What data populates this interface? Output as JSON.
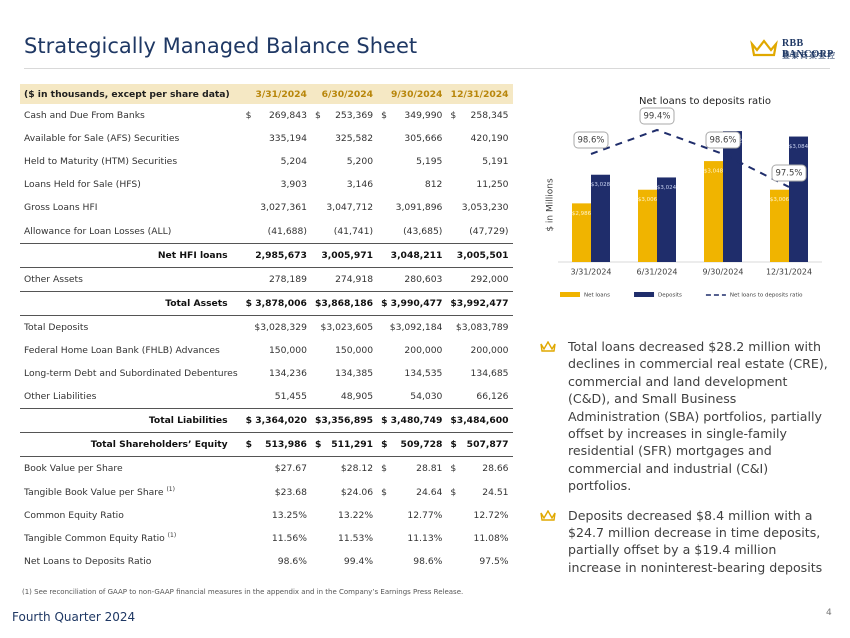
{
  "header": {
    "title": "Strategically Managed Balance Sheet",
    "logo": "RBB BANCORP",
    "logo_sub": "豐泰商業金控"
  },
  "table": {
    "columns": [
      "($ in thousands, except per share data)",
      "3/31/2024",
      "6/30/2024",
      "9/30/2024",
      "12/31/2024"
    ],
    "rows": [
      {
        "label": "Cash and Due From Banks",
        "cells": [
          [
            "$",
            "269,843"
          ],
          [
            "$",
            "253,369"
          ],
          [
            "$",
            "349,990"
          ],
          [
            "$",
            "258,345"
          ]
        ]
      },
      {
        "label": "Available for Sale (AFS) Securities",
        "cells": [
          "335,194",
          "325,582",
          "305,666",
          "420,190"
        ]
      },
      {
        "label": "Held to Maturity (HTM) Securities",
        "cells": [
          "5,204",
          "5,200",
          "5,195",
          "5,191"
        ]
      },
      {
        "label": "Loans Held for Sale (HFS)",
        "cells": [
          "3,903",
          "3,146",
          "812",
          "11,250"
        ]
      },
      {
        "label": "Gross Loans HFI",
        "cells": [
          "3,027,361",
          "3,047,712",
          "3,091,896",
          "3,053,230"
        ]
      },
      {
        "label": "Allowance for Loan Losses (ALL)",
        "cells": [
          "(41,688)",
          "(41,741)",
          "(43,685)",
          "(47,729)"
        ]
      },
      {
        "label": "Net HFI loans",
        "cells": [
          "2,985,673",
          "3,005,971",
          "3,048,211",
          "3,005,501"
        ]
      },
      {
        "label": "Other Assets",
        "cells": [
          "278,189",
          "274,918",
          "280,603",
          "292,000"
        ]
      },
      {
        "label": "Total Assets",
        "cells": [
          "$ 3,878,006",
          "$3,868,186",
          "$ 3,990,477",
          "$3,992,477"
        ]
      },
      {
        "label": "Total Deposits",
        "cells": [
          "$3,028,329",
          "$3,023,605",
          "$3,092,184",
          "$3,083,789"
        ]
      },
      {
        "label": "Federal Home Loan Bank (FHLB) Advances",
        "cells": [
          "150,000",
          "150,000",
          "200,000",
          "200,000"
        ]
      },
      {
        "label": "Long-term Debt and Subordinated Debentures",
        "cells": [
          "134,236",
          "134,385",
          "134,535",
          "134,685"
        ]
      },
      {
        "label": "Other Liabilities",
        "cells": [
          "51,455",
          "48,905",
          "54,030",
          "66,126"
        ]
      },
      {
        "label": "Total Liabilities",
        "cells": [
          "$ 3,364,020",
          "$3,356,895",
          "$ 3,480,749",
          "$3,484,600"
        ]
      },
      {
        "label": "Total Shareholders’ Equity",
        "cells": [
          [
            "$",
            "513,986"
          ],
          [
            "$",
            "511,291"
          ],
          [
            "$",
            "509,728"
          ],
          [
            "$",
            "507,877"
          ]
        ]
      },
      {
        "label": "Book Value per Share",
        "cells": [
          "$27.67",
          "$28.12",
          [
            "$",
            "28.81"
          ],
          [
            "$",
            "28.66"
          ]
        ]
      },
      {
        "label": "Tangible Book Value per Share",
        "note": "(1)",
        "cells": [
          "$23.68",
          "$24.06",
          [
            "$",
            "24.64"
          ],
          [
            "$",
            "24.51"
          ]
        ]
      },
      {
        "label": "Common Equity Ratio",
        "cells": [
          "13.25%",
          "13.22%",
          "12.77%",
          "12.72%"
        ]
      },
      {
        "label": "Tangible Common Equity Ratio",
        "note": "(1)",
        "cells": [
          "11.56%",
          "11.53%",
          "11.13%",
          "11.08%"
        ]
      },
      {
        "label": "Net Loans to Deposits Ratio",
        "cells": [
          "98.6%",
          "99.4%",
          "98.6%",
          "97.5%"
        ]
      }
    ]
  },
  "chart_data": {
    "type": "bar",
    "title": "Net loans to deposits ratio",
    "y_label": "$ in Millions",
    "categories": [
      "3/31/2024",
      "6/31/2024",
      "9/30/2024",
      "12/31/2024"
    ],
    "ylim": [
      2900,
      3120
    ],
    "y2lim": [
      95,
      100
    ],
    "series": [
      {
        "name": "Net loans",
        "color": "#f0b400",
        "values": [
          2986,
          3006,
          3048,
          3006
        ],
        "value_labels": [
          "$2,986",
          "$3,006",
          "$3,048",
          "$3,006"
        ]
      },
      {
        "name": "Deposits",
        "color": "#1f2d6b",
        "values": [
          3028,
          3024,
          3092,
          3084
        ],
        "value_labels": [
          "$3,028",
          "$3,024",
          "$3,092",
          "$3,084"
        ]
      },
      {
        "name": "Net loans to deposits ratio",
        "type": "line",
        "axis": "y2",
        "color": "#1f2d6b",
        "values": [
          98.6,
          99.4,
          98.6,
          97.5
        ],
        "value_labels": [
          "98.6%",
          "99.4%",
          "98.6%",
          "97.5%"
        ]
      }
    ]
  },
  "bullets": [
    "Total loans decreased $28.2 million with declines in commercial real estate (CRE), commercial and land development (C&D), and Small Business Administration (SBA) portfolios, partially offset by increases in single-family residential (SFR) mortgages and commercial and industrial (C&I) portfolios.",
    "Deposits decreased $8.4 million with a $24.7 million decrease in time deposits, partially offset by a $19.4 million increase in noninterest-bearing deposits"
  ],
  "footer": {
    "footnote": "(1) See reconciliation of GAAP to non-GAAP financial measures in the appendix and in the Company’s Earnings Press Release.",
    "left": "Fourth Quarter 2024",
    "page": "4"
  }
}
